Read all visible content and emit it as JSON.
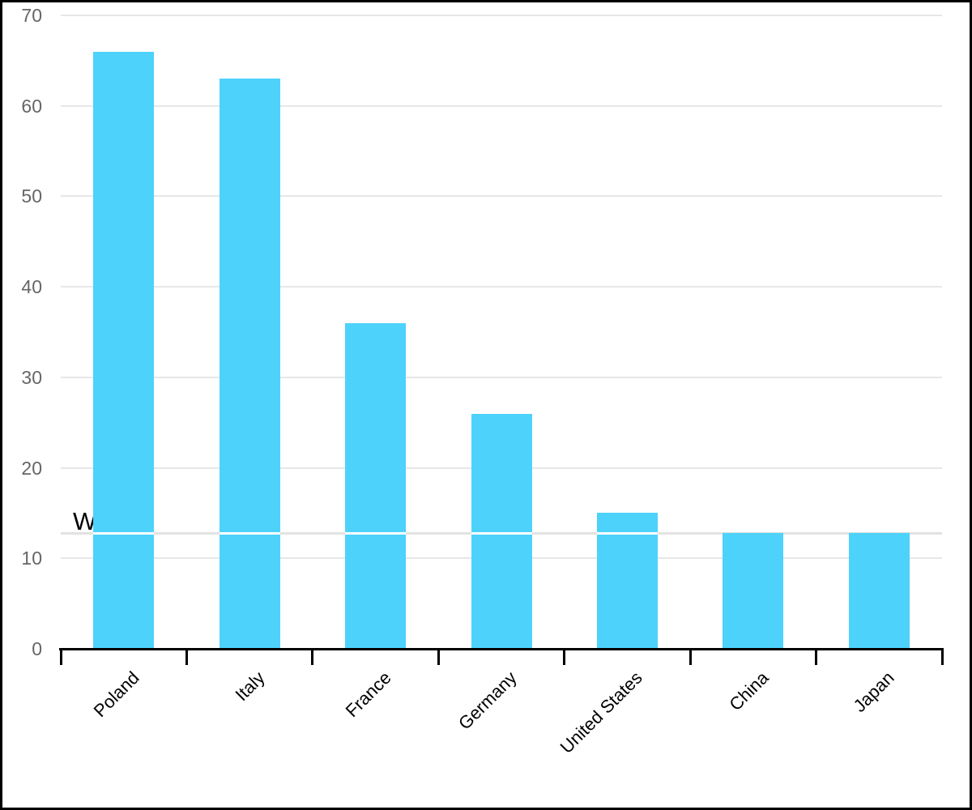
{
  "chart_data": {
    "type": "bar",
    "categories": [
      "Poland",
      "Italy",
      "France",
      "Germany",
      "United States",
      "China",
      "Japan"
    ],
    "values": [
      66,
      63,
      36,
      26,
      15,
      12.8,
      12.8
    ],
    "title": "",
    "xlabel": "",
    "ylabel": "",
    "ylim": [
      0,
      70
    ],
    "yticks": [
      0,
      10,
      20,
      30,
      40,
      50,
      60,
      70
    ],
    "grid": true,
    "legend": false,
    "reference_line": {
      "label": "World",
      "value": 12.8
    },
    "colors": {
      "bar": "#4DD2FC",
      "gridline": "#E7E7E7",
      "reference_line": "#E2E2E2",
      "axis_line": "#000000",
      "y_tick_label": "#666666",
      "x_tick_label": "#000000",
      "reference_label": "#000000",
      "background": "#FFFFFF",
      "frame_border": "#000000"
    }
  }
}
